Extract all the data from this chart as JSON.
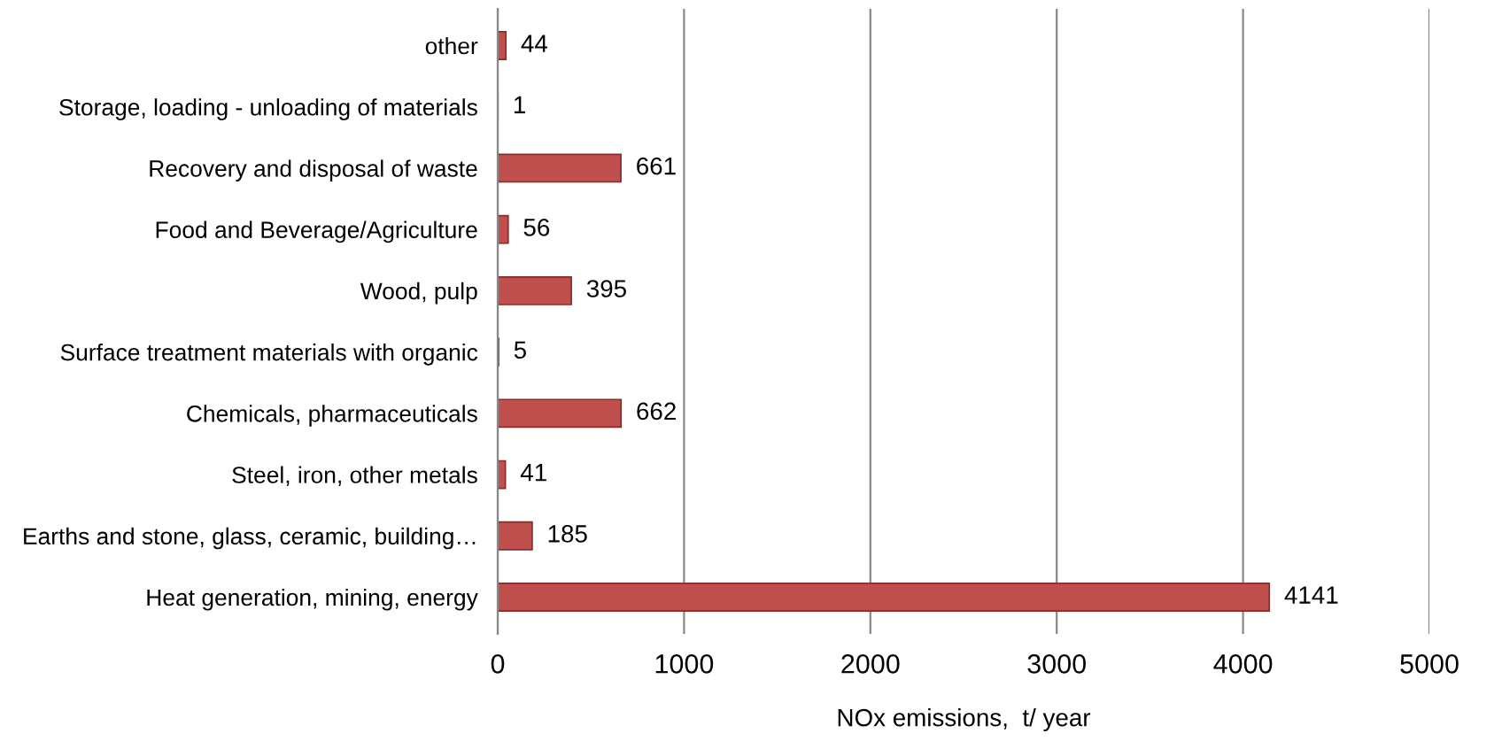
{
  "chart_data": {
    "type": "bar",
    "orientation": "horizontal",
    "xlabel": "NOx emissions,  t/ year",
    "categories": [
      "other",
      "Storage, loading - unloading of materials",
      "Recovery and disposal of waste",
      "Food and Beverage/Agriculture",
      "Wood, pulp",
      "Surface treatment materials with organic",
      "Chemicals, pharmaceuticals",
      "Steel, iron, other metals",
      "Earths and stone, glass, ceramic, building…",
      "Heat generation, mining, energy"
    ],
    "values": [
      44,
      1,
      661,
      56,
      395,
      5,
      662,
      41,
      185,
      4141
    ],
    "color": "#c0504d",
    "xlim": [
      0,
      5000
    ],
    "xticks": [
      0,
      1000,
      2000,
      3000,
      4000,
      5000
    ],
    "grid": "x",
    "data_labels": true
  }
}
